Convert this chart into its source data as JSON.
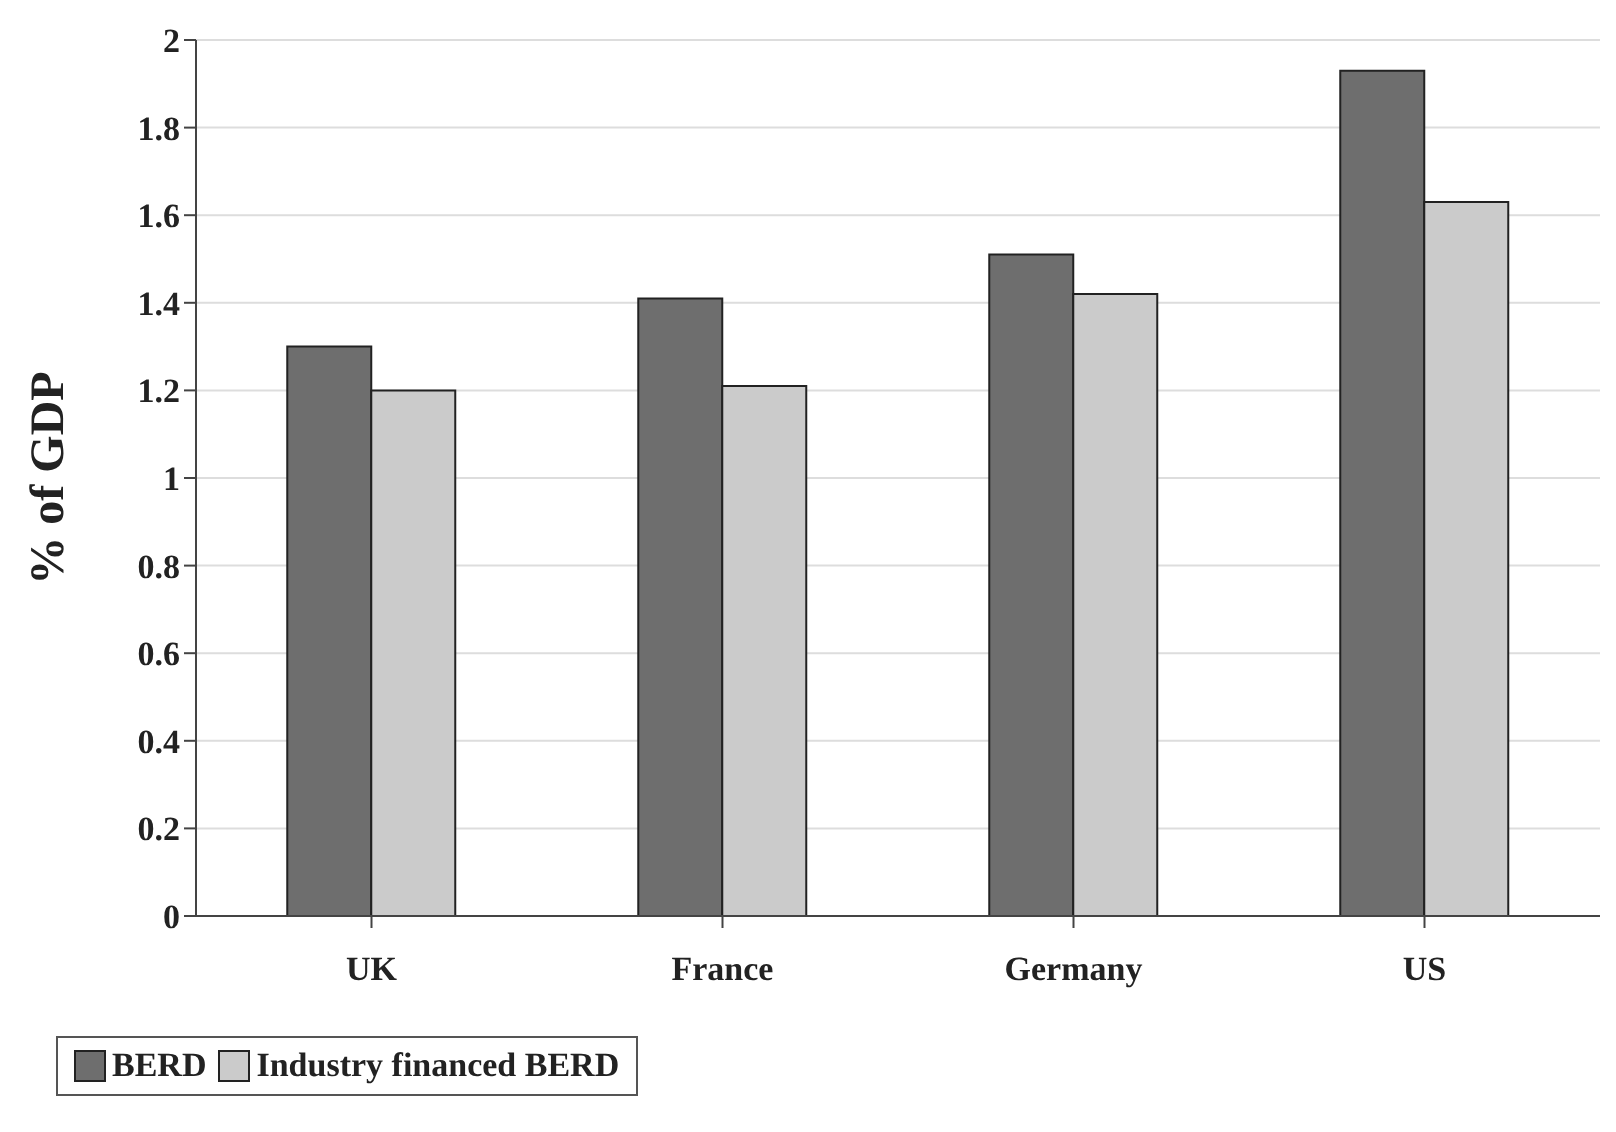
{
  "chart_data": {
    "type": "bar",
    "ylabel": "% of GDP",
    "categories": [
      "UK",
      "France",
      "Germany",
      "US"
    ],
    "series": [
      {
        "name": "BERD",
        "color": "#6e6e6e",
        "values": [
          1.3,
          1.41,
          1.51,
          1.93
        ]
      },
      {
        "name": "Industry financed BERD",
        "color": "#cbcbcb",
        "values": [
          1.2,
          1.21,
          1.42,
          1.63
        ]
      }
    ],
    "ylim": [
      0,
      2
    ],
    "yticks": [
      0,
      0.2,
      0.4,
      0.6,
      0.8,
      1,
      1.2,
      1.4,
      1.6,
      1.8,
      2
    ],
    "grid": "y",
    "legend": "bottom"
  }
}
